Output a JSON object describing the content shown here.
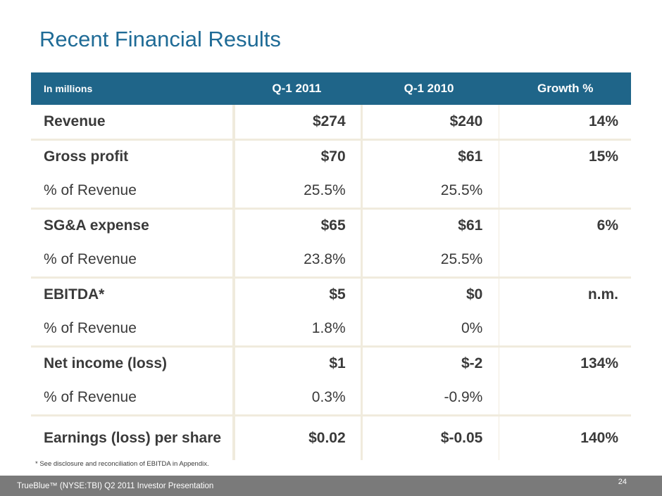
{
  "slide": {
    "title": "Recent Financial Results",
    "footnote": "* See disclosure and reconciliation of EBITDA in Appendix.",
    "footer_text": "TrueBlue™ (NYSE:TBI) Q2 2011 Investor Presentation",
    "page_number": "24"
  },
  "table": {
    "headers": [
      "In millions",
      "Q-1 2011",
      "Q-1 2010",
      "Growth %"
    ],
    "groups": [
      {
        "rows": [
          {
            "label": "Revenue",
            "q1_2011": "$274",
            "q1_2010": "$240",
            "growth": "14%"
          }
        ]
      },
      {
        "rows": [
          {
            "label": "Gross profit",
            "q1_2011": "$70",
            "q1_2010": "$61",
            "growth": "15%"
          },
          {
            "label": "% of Revenue",
            "q1_2011": "25.5%",
            "q1_2010": "25.5%",
            "growth": ""
          }
        ]
      },
      {
        "rows": [
          {
            "label": "SG&A expense",
            "q1_2011": "$65",
            "q1_2010": "$61",
            "growth": "6%"
          },
          {
            "label": "% of Revenue",
            "q1_2011": "23.8%",
            "q1_2010": "25.5%",
            "growth": ""
          }
        ]
      },
      {
        "rows": [
          {
            "label": "EBITDA*",
            "q1_2011": "$5",
            "q1_2010": "$0",
            "growth": "n.m."
          },
          {
            "label": "% of Revenue",
            "q1_2011": "1.8%",
            "q1_2010": "0%",
            "growth": ""
          }
        ]
      },
      {
        "rows": [
          {
            "label": "Net income (loss)",
            "q1_2011": "$1",
            "q1_2010": "$-2",
            "growth": "134%"
          },
          {
            "label": "% of Revenue",
            "q1_2011": "0.3%",
            "q1_2010": "-0.9%",
            "growth": ""
          }
        ]
      },
      {
        "rows": [
          {
            "label": "Earnings (loss) per share",
            "q1_2011": "$0.02",
            "q1_2010": "$-0.05",
            "growth": "140%"
          }
        ]
      }
    ]
  }
}
